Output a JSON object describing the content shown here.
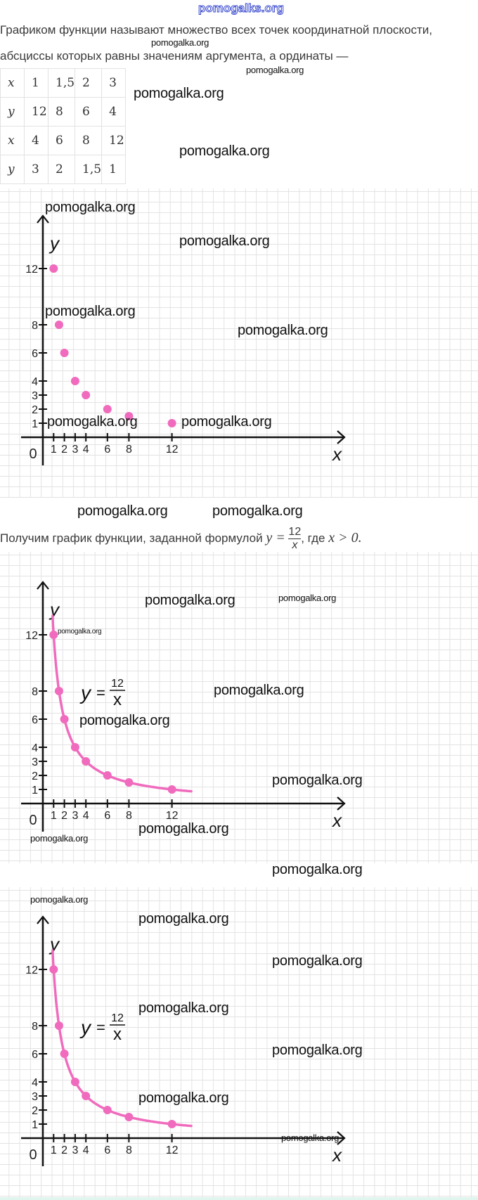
{
  "watermark_top": "pomogalks.org",
  "watermark": "pomogalka.org",
  "text": {
    "definition_line1": "Графиком функции называют множество всех точек координатной плоскости,",
    "definition_line2": "абсциссы которых равны значениям аргумента, а ординаты —",
    "result_prefix": "Получим график функции, заданной формулой",
    "formula_y": "y =",
    "formula_num": "12",
    "formula_den": "x",
    "result_suffix": ", где",
    "condition": "x > 0."
  },
  "table": {
    "rows": [
      [
        "x",
        "1",
        "1,5",
        "2",
        "3"
      ],
      [
        "y",
        "12",
        "8",
        "6",
        "4"
      ],
      [
        "x",
        "4",
        "6",
        "8",
        "12"
      ],
      [
        "y",
        "3",
        "2",
        "1,5",
        "1"
      ]
    ]
  },
  "graph_label": {
    "y": "y",
    "eq": "=",
    "num": "12",
    "den": "x"
  },
  "colors": {
    "accent": "#f06bbd",
    "axis": "#111111",
    "grid": "#e3e3e3"
  },
  "chart_data": [
    {
      "type": "scatter",
      "xlabel": "x",
      "ylabel": "y",
      "origin_label": "0",
      "x_ticks": [
        "1",
        "2",
        "3",
        "4",
        "6",
        "8",
        "12"
      ],
      "y_ticks": [
        "1",
        "2",
        "3",
        "4",
        "6",
        "8",
        "12"
      ],
      "x": [
        1,
        1.5,
        2,
        3,
        4,
        6,
        8,
        12
      ],
      "y": [
        12,
        8,
        6,
        4,
        3,
        2,
        1.5,
        1
      ],
      "grid": true
    },
    {
      "type": "line",
      "function": "y = 12/x",
      "xlabel": "x",
      "ylabel": "y",
      "origin_label": "0",
      "x_ticks": [
        "1",
        "2",
        "3",
        "4",
        "6",
        "8",
        "12"
      ],
      "y_ticks": [
        "1",
        "2",
        "3",
        "4",
        "6",
        "8",
        "12"
      ],
      "x": [
        1,
        1.5,
        2,
        3,
        4,
        6,
        8,
        12
      ],
      "y": [
        12,
        8,
        6,
        4,
        3,
        2,
        1.5,
        1
      ],
      "curve_domain": [
        0.9,
        13.8
      ],
      "grid": true
    },
    {
      "type": "line",
      "function": "y = 12/x",
      "xlabel": "x",
      "ylabel": "y",
      "origin_label": "0",
      "x_ticks": [
        "1",
        "2",
        "3",
        "4",
        "6",
        "8",
        "12"
      ],
      "y_ticks": [
        "1",
        "2",
        "3",
        "4",
        "6",
        "8",
        "12"
      ],
      "x": [
        1,
        1.5,
        2,
        3,
        4,
        6,
        8,
        12
      ],
      "y": [
        12,
        8,
        6,
        4,
        3,
        2,
        1.5,
        1
      ],
      "curve_domain": [
        0.9,
        13.8
      ],
      "grid": true
    }
  ]
}
